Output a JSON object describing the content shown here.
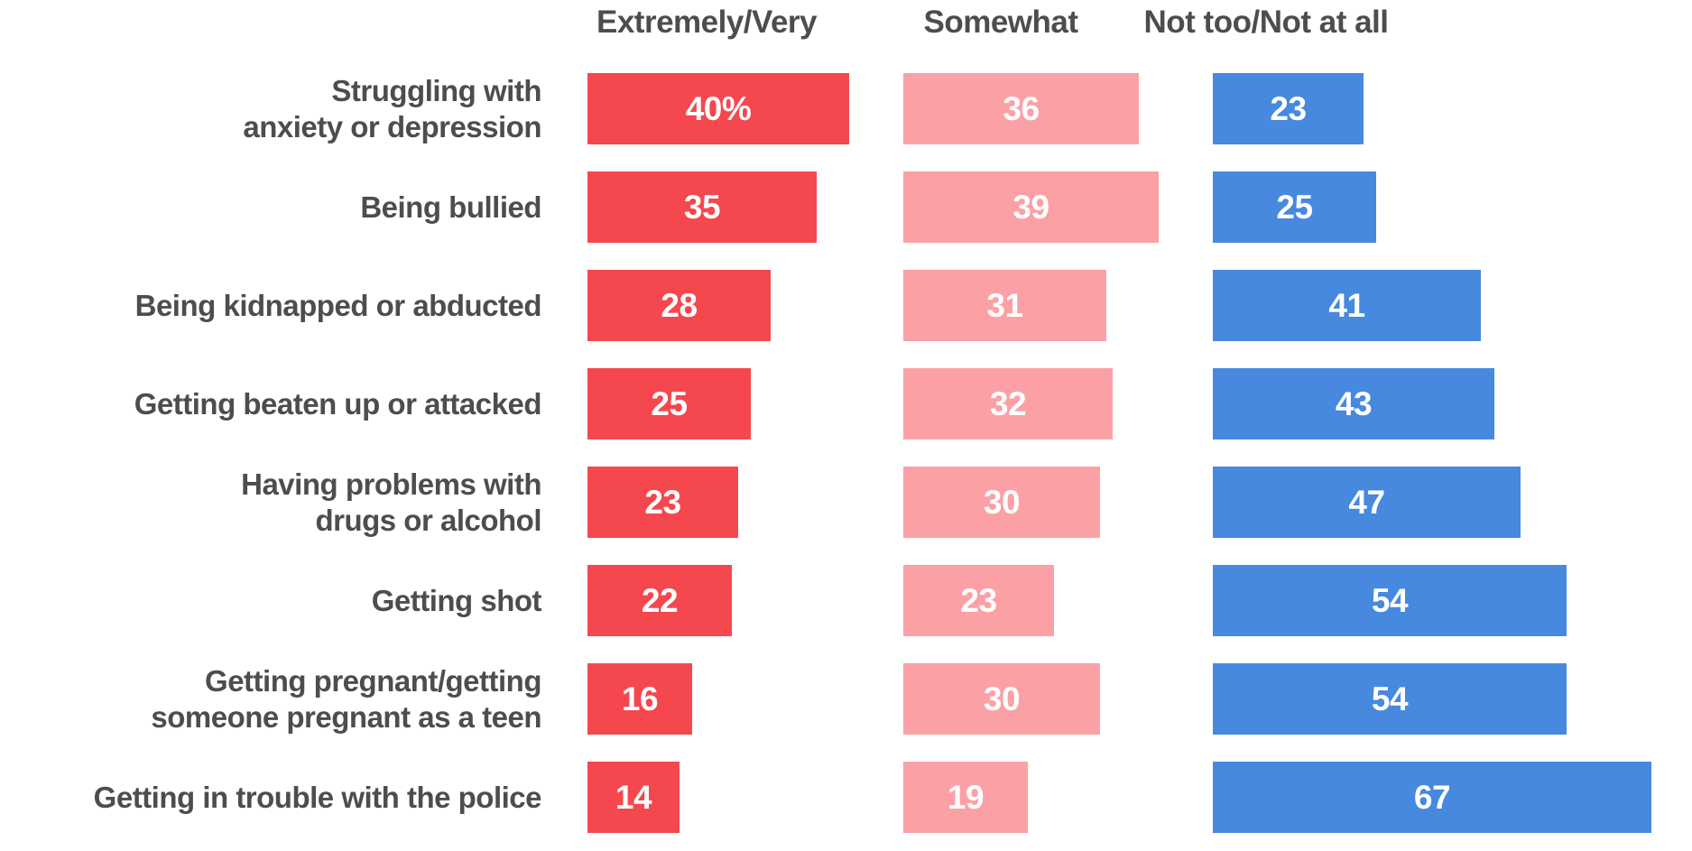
{
  "chart_data": {
    "type": "bar",
    "orientation": "horizontal",
    "unit": "percent",
    "categories": [
      "Struggling with\nanxiety or depression",
      "Being bullied",
      "Being kidnapped or abducted",
      "Getting beaten up or attacked",
      "Having problems with\ndrugs or alcohol",
      "Getting shot",
      "Getting pregnant/getting\nsomeone pregnant as a teen",
      "Getting in trouble with the police"
    ],
    "series": [
      {
        "name": "Extremely/Very",
        "color": "#f5474e",
        "values": [
          40,
          35,
          28,
          25,
          23,
          22,
          16,
          14
        ],
        "labels": [
          "40%",
          "35",
          "28",
          "25",
          "23",
          "22",
          "16",
          "14"
        ]
      },
      {
        "name": "Somewhat",
        "color": "#fba1a6",
        "values": [
          36,
          39,
          31,
          32,
          30,
          23,
          30,
          19
        ],
        "labels": [
          "36",
          "39",
          "31",
          "32",
          "30",
          "23",
          "30",
          "19"
        ]
      },
      {
        "name": "Not too/Not at all",
        "color": "#4689df",
        "values": [
          23,
          25,
          41,
          43,
          47,
          54,
          54,
          67
        ],
        "labels": [
          "23",
          "25",
          "41",
          "43",
          "47",
          "54",
          "54",
          "67"
        ]
      }
    ],
    "value_range": [
      0,
      100
    ],
    "grid": false,
    "legend_position": "top-as-column-headers",
    "text_color": "#4d4d4f",
    "value_label_color": "#ffffff"
  }
}
